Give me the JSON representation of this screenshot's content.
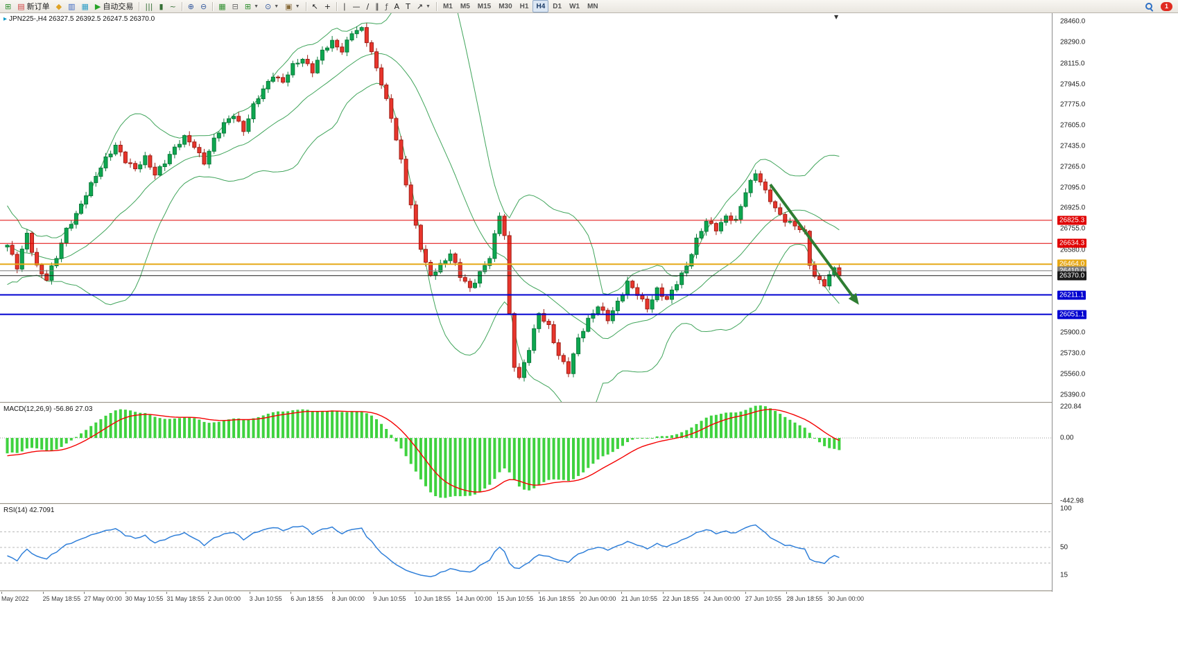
{
  "toolbar": {
    "items": [
      {
        "name": "new-chart-icon",
        "glyph": "⊞",
        "color": "#2f8f2f"
      },
      {
        "name": "new-order-button",
        "glyph": "▤",
        "color": "#cf4040",
        "label": "新订单"
      },
      {
        "name": "profiles-icon",
        "glyph": "◆",
        "color": "#dfa224"
      },
      {
        "name": "market-watch-icon",
        "glyph": "▥",
        "color": "#3a66c2"
      },
      {
        "name": "data-window-icon",
        "glyph": "▦",
        "color": "#2f9ec7"
      },
      {
        "name": "auto-trading-button",
        "glyph": "▶",
        "color": "#27a327",
        "label": "自动交易"
      },
      {
        "sep": true
      },
      {
        "name": "bar-chart-icon",
        "glyph": "|||",
        "color": "#356f35"
      },
      {
        "name": "candlestick-icon",
        "glyph": "▮",
        "color": "#356f35"
      },
      {
        "name": "line-chart-icon",
        "glyph": "~",
        "color": "#356f35"
      },
      {
        "sep": true
      },
      {
        "name": "zoom-in-icon",
        "glyph": "⊕",
        "color": "#33599e"
      },
      {
        "name": "zoom-out-icon",
        "glyph": "⊖",
        "color": "#33599e"
      },
      {
        "sep": true
      },
      {
        "name": "tile-windows-icon",
        "glyph": "▦",
        "color": "#2f8f2f"
      },
      {
        "name": "arrange-windows-icon",
        "glyph": "⊟",
        "color": "#666666"
      },
      {
        "name": "indicators-button",
        "glyph": "⊞",
        "color": "#2f8f2f",
        "dropdown": true
      },
      {
        "name": "timeframes-button",
        "glyph": "⊙",
        "color": "#33599e",
        "dropdown": true
      },
      {
        "name": "templates-button",
        "glyph": "▣",
        "color": "#8a6d3b",
        "dropdown": true
      },
      {
        "sep": true
      },
      {
        "name": "cursor-icon",
        "glyph": "↖",
        "color": "#222222"
      },
      {
        "name": "crosshair-icon",
        "glyph": "+",
        "color": "#222222"
      },
      {
        "sep": true
      },
      {
        "name": "vertical-line-icon",
        "glyph": "∣",
        "color": "#222222"
      },
      {
        "name": "horizontal-line-icon",
        "glyph": "—",
        "color": "#222222"
      },
      {
        "name": "trendline-icon",
        "glyph": "∕",
        "color": "#222222"
      },
      {
        "name": "channel-icon",
        "glyph": "∥",
        "color": "#222222"
      },
      {
        "name": "fibonacci-icon",
        "glyph": "ƒ",
        "color": "#555555"
      },
      {
        "name": "text-icon",
        "glyph": "A",
        "color": "#222222"
      },
      {
        "name": "label-icon",
        "glyph": "T",
        "color": "#222222"
      },
      {
        "name": "arrows-button",
        "glyph": "↗",
        "color": "#222222",
        "dropdown": true
      },
      {
        "sep": true
      }
    ],
    "timeframes": [
      "M1",
      "M5",
      "M15",
      "M30",
      "H1",
      "H4",
      "D1",
      "W1",
      "MN"
    ],
    "active_timeframe": "H4",
    "notification_count": "1"
  },
  "chart": {
    "title_icon": "▸",
    "title": "JPN225-,H4 26327.5 26392.5 26247.5 26370.0",
    "symbol": "JPN225-",
    "period": "H4",
    "ohlc_last": {
      "open": "26327.5",
      "high": "26392.5",
      "low": "26247.5",
      "close": "26370.0"
    },
    "shift_marker": "▼"
  },
  "chart_data": [
    {
      "type": "candlestick",
      "title": "JPN225-,H4",
      "timeframe": "H4",
      "ylim": [
        25330,
        28530
      ],
      "bull_color": "#0da750",
      "bear_color": "#e8352c",
      "bollinger": {
        "period": 20,
        "deviation": 2,
        "color": "#3fa45a"
      },
      "ticks": [
        "28460.0",
        "28290.0",
        "28115.0",
        "27945.0",
        "27775.0",
        "27605.0",
        "27435.0",
        "27265.0",
        "27095.0",
        "26925.0",
        "26755.0",
        "26580.0",
        "25900.0",
        "25730.0",
        "25560.0",
        "25390.0"
      ],
      "levels": [
        {
          "label": "26825.3",
          "value": 26825.3,
          "color": "#e00000",
          "width": 1
        },
        {
          "label": "26634.3",
          "value": 26634.3,
          "color": "#e00000",
          "width": 1
        },
        {
          "label": "26464.0",
          "value": 26464.0,
          "color": "#e6a817",
          "width": 2
        },
        {
          "label": "26410.0",
          "value": 26410.0,
          "color": "#7d7d7d",
          "width": 1
        },
        {
          "label": "26370.0",
          "value": 26370.0,
          "color": "#1a1a1a",
          "width": 1,
          "role": "current-price"
        },
        {
          "label": "26211.1",
          "value": 26211.1,
          "color": "#0000d0",
          "width": 2
        },
        {
          "label": "26051.1",
          "value": 26051.1,
          "color": "#0000d0",
          "width": 2
        }
      ],
      "arrow": {
        "from": [
          155,
          27120
        ],
        "to": [
          173,
          26130
        ],
        "color": "#2e7d32"
      },
      "x_labels": [
        "May 2022",
        "25 May 18:55",
        "27 May 00:00",
        "30 May 10:55",
        "31 May 18:55",
        "2 Jun 00:00",
        "3 Jun 10:55",
        "6 Jun 18:55",
        "8 Jun 00:00",
        "9 Jun 10:55",
        "10 Jun 18:55",
        "14 Jun 00:00",
        "15 Jun 10:55",
        "16 Jun 18:55",
        "20 Jun 00:00",
        "21 Jun 10:55",
        "22 Jun 18:55",
        "24 Jun 00:00",
        "27 Jun 10:55",
        "28 Jun 18:55",
        "30 Jun 00:00"
      ],
      "pre_closes": [
        27050,
        26980,
        26880,
        26920,
        26780,
        26700,
        26750,
        26620,
        26560,
        26640,
        26520,
        26460,
        26550,
        26440,
        26380,
        26480,
        26560,
        26470,
        26520,
        26580
      ],
      "anchors": [
        [
          0,
          26620
        ],
        [
          2,
          26430
        ],
        [
          4,
          26720
        ],
        [
          6,
          26450
        ],
        [
          8,
          26330
        ],
        [
          10,
          26520
        ],
        [
          12,
          26760
        ],
        [
          14,
          26870
        ],
        [
          16,
          27030
        ],
        [
          18,
          27200
        ],
        [
          20,
          27340
        ],
        [
          22,
          27430
        ],
        [
          24,
          27310
        ],
        [
          26,
          27260
        ],
        [
          28,
          27340
        ],
        [
          30,
          27190
        ],
        [
          32,
          27310
        ],
        [
          34,
          27430
        ],
        [
          36,
          27500
        ],
        [
          38,
          27430
        ],
        [
          40,
          27310
        ],
        [
          42,
          27490
        ],
        [
          44,
          27610
        ],
        [
          46,
          27700
        ],
        [
          48,
          27570
        ],
        [
          50,
          27760
        ],
        [
          52,
          27900
        ],
        [
          54,
          28030
        ],
        [
          56,
          27960
        ],
        [
          58,
          28090
        ],
        [
          60,
          28160
        ],
        [
          62,
          28060
        ],
        [
          64,
          28210
        ],
        [
          66,
          28290
        ],
        [
          68,
          28230
        ],
        [
          70,
          28370
        ],
        [
          72,
          28390
        ],
        [
          74,
          28210
        ],
        [
          76,
          27960
        ],
        [
          78,
          27660
        ],
        [
          80,
          27310
        ],
        [
          82,
          26960
        ],
        [
          84,
          26600
        ],
        [
          85,
          26460
        ],
        [
          86,
          26360
        ],
        [
          88,
          26460
        ],
        [
          90,
          26560
        ],
        [
          92,
          26360
        ],
        [
          94,
          26260
        ],
        [
          96,
          26400
        ],
        [
          98,
          26520
        ],
        [
          100,
          26860
        ],
        [
          101,
          26700
        ],
        [
          102,
          26050
        ],
        [
          103,
          25640
        ],
        [
          104,
          25530
        ],
        [
          106,
          25760
        ],
        [
          108,
          26060
        ],
        [
          110,
          25960
        ],
        [
          112,
          25710
        ],
        [
          114,
          25570
        ],
        [
          116,
          25860
        ],
        [
          118,
          26010
        ],
        [
          120,
          26110
        ],
        [
          122,
          26010
        ],
        [
          124,
          26160
        ],
        [
          126,
          26310
        ],
        [
          128,
          26210
        ],
        [
          130,
          26110
        ],
        [
          132,
          26260
        ],
        [
          134,
          26160
        ],
        [
          136,
          26310
        ],
        [
          138,
          26460
        ],
        [
          140,
          26660
        ],
        [
          142,
          26810
        ],
        [
          144,
          26760
        ],
        [
          146,
          26860
        ],
        [
          148,
          26810
        ],
        [
          150,
          27060
        ],
        [
          152,
          27230
        ],
        [
          154,
          27060
        ],
        [
          156,
          26910
        ],
        [
          158,
          26830
        ],
        [
          160,
          26790
        ],
        [
          162,
          26710
        ],
        [
          163,
          26460
        ],
        [
          164,
          26360
        ],
        [
          166,
          26310
        ],
        [
          168,
          26430
        ],
        [
          169,
          26370
        ]
      ]
    },
    {
      "type": "macd",
      "label": "MACD(12,26,9) -56.86 27.03",
      "name": "MACD",
      "params": "12,26,9",
      "value_main": "-56.86",
      "value_signal": "27.03",
      "ylim": [
        -460,
        245
      ],
      "scale_ticks": [
        "220.84",
        "0.00",
        "-442.98"
      ],
      "histogram_color": "#3fd23f",
      "signal_color": "#f40000"
    },
    {
      "type": "line",
      "label": "RSI(14) 42.7091",
      "name": "RSI",
      "period": 14,
      "value": "42.7091",
      "ylim": [
        -5,
        105
      ],
      "levels": [
        70,
        50,
        30
      ],
      "scale_ticks": [
        "100",
        "50",
        "15"
      ],
      "line_color": "#2f7fd9"
    }
  ]
}
